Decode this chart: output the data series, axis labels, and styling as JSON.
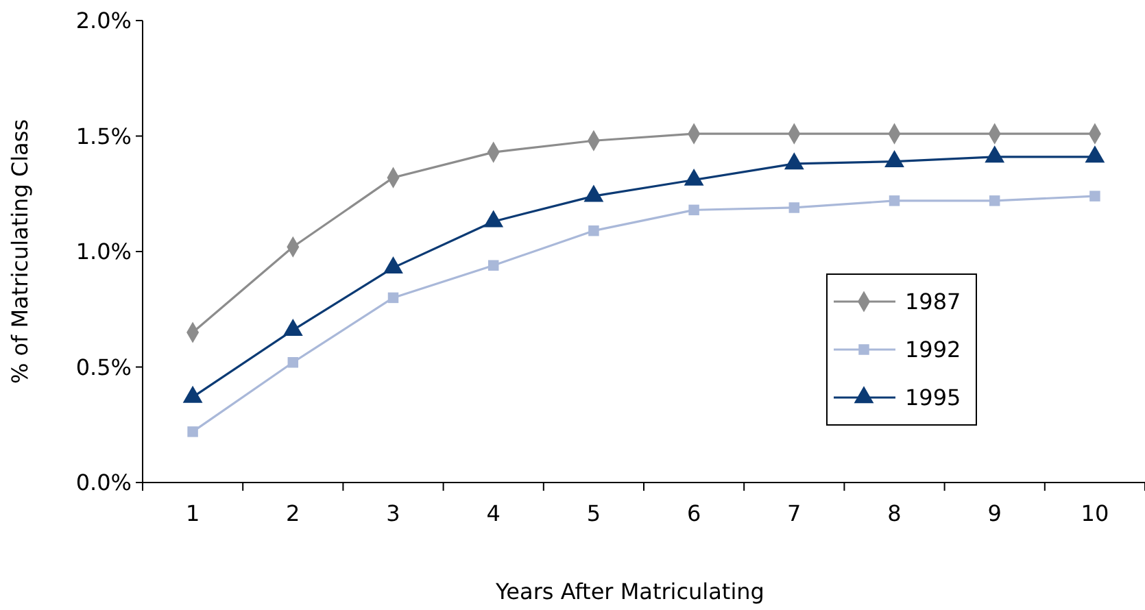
{
  "chart_data": {
    "type": "line",
    "xlabel": "Years After Matriculating",
    "ylabel": "% of Matriculating Class",
    "categories": [
      "1",
      "2",
      "3",
      "4",
      "5",
      "6",
      "7",
      "8",
      "9",
      "10"
    ],
    "ylim": [
      0,
      2
    ],
    "yticks": [
      {
        "value": 0,
        "label": "0.0%"
      },
      {
        "value": 0.5,
        "label": "0.5%"
      },
      {
        "value": 1,
        "label": "1.0%"
      },
      {
        "value": 1.5,
        "label": "1.5%"
      },
      {
        "value": 2,
        "label": "2.0%"
      }
    ],
    "grid": false,
    "legend": "right",
    "line_style": "solid",
    "series": [
      {
        "name": "1987",
        "color": "#8c8c8c",
        "marker": "diamond",
        "values": [
          0.65,
          1.02,
          1.32,
          1.43,
          1.48,
          1.51,
          1.51,
          1.51,
          1.51,
          1.51
        ]
      },
      {
        "name": "1992",
        "color": "#a9b8d9",
        "marker": "square",
        "values": [
          0.22,
          0.52,
          0.8,
          0.94,
          1.09,
          1.18,
          1.19,
          1.22,
          1.22,
          1.24
        ]
      },
      {
        "name": "1995",
        "color": "#0b3a74",
        "marker": "triangle",
        "values": [
          0.37,
          0.66,
          0.93,
          1.13,
          1.24,
          1.31,
          1.38,
          1.39,
          1.41,
          1.41
        ]
      }
    ]
  }
}
